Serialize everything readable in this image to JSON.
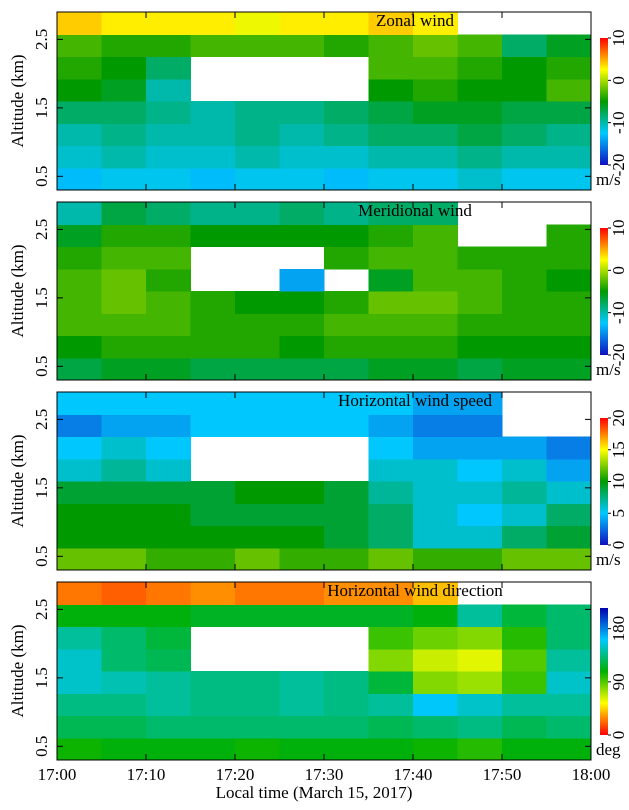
{
  "chart_data": [
    {
      "type": "heatmap",
      "title": "Zonal wind",
      "ylabel": "Altitude (km)",
      "ylim": [
        0.3,
        2.9
      ],
      "yticks": [
        0.5,
        1.5,
        2.5
      ],
      "x": [
        2.5,
        7.5,
        12.5,
        17.5,
        22.5,
        27.5,
        32.5,
        37.5,
        42.5,
        47.5,
        52.5,
        57.5
      ],
      "y": [
        0.4625,
        0.7875,
        1.1125,
        1.4375,
        1.7625,
        2.0875,
        2.4125,
        2.7375
      ],
      "z": [
        [
          -13,
          -12,
          -12,
          -13,
          -12,
          -12,
          -13,
          -12,
          -12,
          -11,
          -12,
          -12
        ],
        [
          -11,
          -10,
          -11,
          -11,
          -10,
          -11,
          -11,
          -10,
          -10,
          -9,
          -10,
          -10
        ],
        [
          -10,
          -9,
          -10,
          -10,
          -9,
          -10,
          -9,
          -8,
          -8,
          -7,
          -8,
          -9
        ],
        [
          -8,
          -8,
          -9,
          -10,
          -9,
          -9,
          -8,
          -7,
          -6,
          -6,
          -7,
          -7
        ],
        [
          -5,
          -6,
          -10,
          null,
          null,
          null,
          null,
          -5,
          -4,
          -5,
          -5,
          -3
        ],
        [
          -4,
          -5,
          -8,
          null,
          null,
          null,
          null,
          -3,
          -3,
          -4,
          -5,
          -4
        ],
        [
          -3,
          -4,
          -4,
          -3,
          -3,
          -3,
          -4,
          -3,
          -2,
          -3,
          -8,
          -6
        ],
        [
          4,
          3,
          3,
          3,
          2,
          3,
          3,
          4,
          3,
          null,
          null,
          null
        ]
      ],
      "clim": [
        -20,
        10
      ],
      "cticks": [
        -20,
        -10,
        0,
        10
      ],
      "units": "m/s",
      "colormap": [
        "#1010c0",
        "#00c8ff",
        "#009a00",
        "#ffff00",
        "#ff0000"
      ]
    },
    {
      "type": "heatmap",
      "title": "Meridional wind",
      "ylabel": "Altitude (km)",
      "ylim": [
        0.3,
        2.9
      ],
      "yticks": [
        0.5,
        1.5,
        2.5
      ],
      "x": [
        2.5,
        7.5,
        12.5,
        17.5,
        22.5,
        27.5,
        32.5,
        37.5,
        42.5,
        47.5,
        52.5,
        57.5
      ],
      "y": [
        0.4625,
        0.7875,
        1.1125,
        1.4375,
        1.7625,
        2.0875,
        2.4125,
        2.7375
      ],
      "z": [
        [
          -7,
          -6,
          -6,
          -7,
          -7,
          -7,
          -7,
          -6,
          -6,
          -7,
          -6,
          -6
        ],
        [
          -5,
          -4,
          -4,
          -4,
          -4,
          -5,
          -4,
          -4,
          -4,
          -5,
          -5,
          -5
        ],
        [
          -3,
          -3,
          -3,
          -4,
          -4,
          -4,
          -3,
          -3,
          -3,
          -4,
          -4,
          -4
        ],
        [
          -3,
          -2,
          -3,
          -4,
          -5,
          -5,
          -4,
          -2,
          -2,
          -3,
          -4,
          -4
        ],
        [
          -3,
          -2,
          -4,
          null,
          null,
          -14,
          null,
          -6,
          -3,
          -3,
          -4,
          -5
        ],
        [
          -4,
          -3,
          -3,
          null,
          null,
          null,
          -4,
          -3,
          -3,
          -4,
          -4,
          -4
        ],
        [
          -6,
          -4,
          -4,
          -5,
          -5,
          -5,
          -5,
          -4,
          -3,
          null,
          null,
          -4
        ],
        [
          -10,
          -7,
          -8,
          -9,
          -9,
          -8,
          -9,
          -8,
          -8,
          null,
          null,
          null
        ]
      ],
      "clim": [
        -20,
        10
      ],
      "cticks": [
        -20,
        -10,
        0,
        10
      ],
      "units": "m/s",
      "colormap": [
        "#1010c0",
        "#00c8ff",
        "#009a00",
        "#ffff00",
        "#ff0000"
      ]
    },
    {
      "type": "heatmap",
      "title": "Horizontal wind speed",
      "ylabel": "Altitude (km)",
      "ylim": [
        0.3,
        2.9
      ],
      "yticks": [
        0.5,
        1.5,
        2.5
      ],
      "x": [
        2.5,
        7.5,
        12.5,
        17.5,
        22.5,
        27.5,
        32.5,
        37.5,
        42.5,
        47.5,
        52.5,
        57.5
      ],
      "y": [
        0.4625,
        0.7875,
        1.1125,
        1.4375,
        1.7625,
        2.0875,
        2.4125,
        2.7375
      ],
      "z": [
        [
          12,
          12,
          11,
          11,
          12,
          11,
          11,
          12,
          11,
          11,
          12,
          12
        ],
        [
          10,
          10,
          10,
          10,
          10,
          10,
          9,
          8,
          6,
          6,
          8,
          9
        ],
        [
          10,
          10,
          10,
          9,
          9,
          9,
          9,
          8,
          6,
          5,
          6,
          8
        ],
        [
          9,
          9,
          9,
          9,
          10,
          10,
          9,
          7,
          6,
          6,
          7,
          6
        ],
        [
          6,
          7,
          6,
          null,
          null,
          null,
          null,
          6,
          6,
          5,
          6,
          4
        ],
        [
          5,
          6,
          5,
          null,
          null,
          null,
          null,
          5,
          4,
          4,
          4,
          3
        ],
        [
          3,
          4,
          4,
          5,
          5,
          5,
          5,
          4,
          3,
          3,
          null,
          null
        ],
        [
          5,
          5,
          5,
          5,
          5,
          5,
          5,
          5,
          4,
          4,
          null,
          null
        ]
      ],
      "clim": [
        0,
        20
      ],
      "cticks": [
        0,
        5,
        10,
        15,
        20
      ],
      "units": "m/s",
      "colormap": [
        "#1010c0",
        "#00c8ff",
        "#009a00",
        "#ffff00",
        "#ff0000"
      ]
    },
    {
      "type": "heatmap",
      "title": "Horizontal wind direction",
      "ylabel": "Altitude (km)",
      "ylim": [
        0.3,
        2.9
      ],
      "yticks": [
        0.5,
        1.5,
        2.5
      ],
      "x": [
        2.5,
        7.5,
        12.5,
        17.5,
        22.5,
        27.5,
        32.5,
        37.5,
        42.5,
        47.5,
        52.5,
        57.5
      ],
      "y": [
        0.4625,
        0.7875,
        1.1125,
        1.4375,
        1.7625,
        2.0875,
        2.4125,
        2.7375
      ],
      "z": [
        [
          105,
          110,
          110,
          110,
          105,
          110,
          110,
          110,
          105,
          100,
          110,
          110
        ],
        [
          125,
          125,
          130,
          130,
          130,
          130,
          130,
          125,
          130,
          135,
          125,
          130
        ],
        [
          135,
          135,
          140,
          135,
          135,
          140,
          135,
          140,
          160,
          150,
          140,
          140
        ],
        [
          150,
          145,
          140,
          135,
          135,
          140,
          135,
          120,
          80,
          75,
          95,
          150
        ],
        [
          150,
          130,
          125,
          null,
          null,
          null,
          null,
          80,
          65,
          60,
          90,
          140
        ],
        [
          140,
          130,
          120,
          null,
          null,
          null,
          null,
          95,
          85,
          80,
          100,
          130
        ],
        [
          110,
          110,
          110,
          115,
          115,
          115,
          115,
          115,
          110,
          140,
          120,
          130
        ],
        [
          25,
          20,
          25,
          30,
          25,
          25,
          30,
          30,
          40,
          null,
          null,
          null
        ]
      ],
      "clim": [
        0,
        215
      ],
      "cticks": [
        0,
        90,
        180
      ],
      "units": "deg",
      "colormap": [
        "#ff0000",
        "#ffff00",
        "#00b000",
        "#00c8ff",
        "#0000b0"
      ]
    }
  ],
  "x_axis": {
    "label": "Local time (March 15, 2017)",
    "xlim": [
      0,
      60
    ],
    "xticks": [
      {
        "value": 0,
        "label": "17:00"
      },
      {
        "value": 10,
        "label": "17:10"
      },
      {
        "value": 20,
        "label": "17:20"
      },
      {
        "value": 30,
        "label": "17:30"
      },
      {
        "value": 40,
        "label": "17:40"
      },
      {
        "value": 50,
        "label": "17:50"
      },
      {
        "value": 60,
        "label": "18:00"
      }
    ]
  }
}
